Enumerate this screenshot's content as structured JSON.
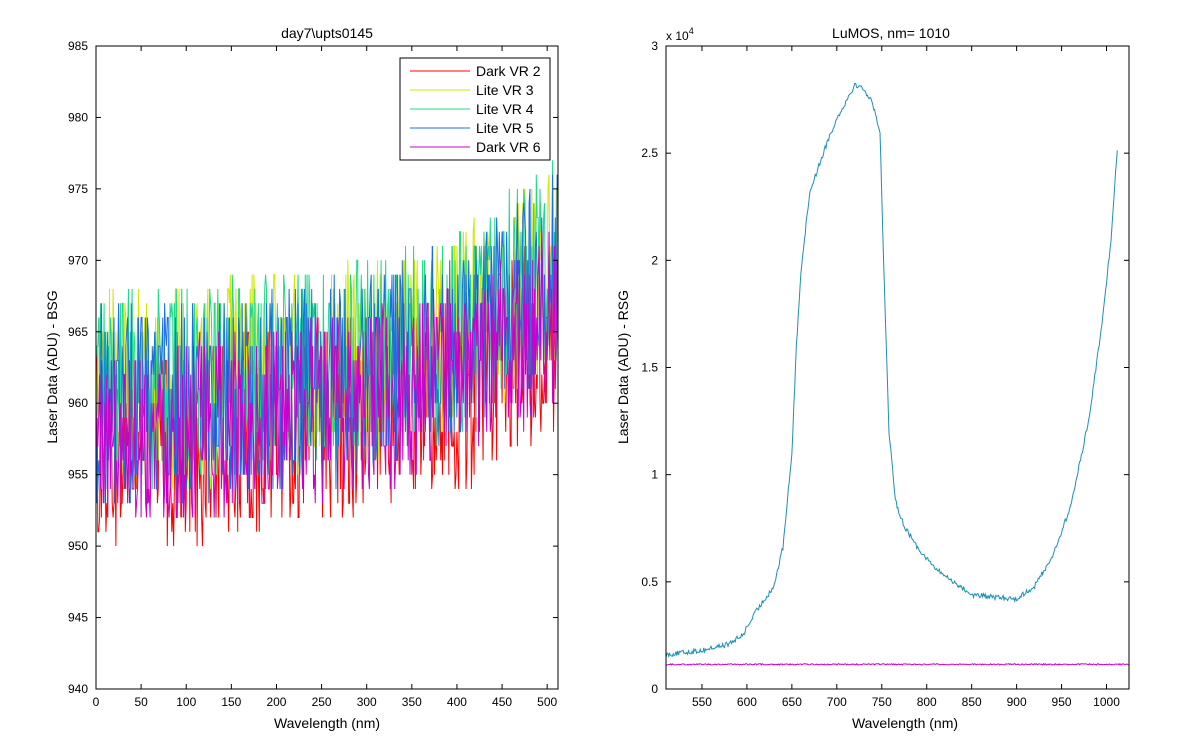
{
  "colors": {
    "dark2": "#ff0000",
    "lite3": "#d4e600",
    "lite4": "#1fd98a",
    "lite5": "#1a6fe0",
    "dark6": "#cc00cc",
    "right_curve": "#1f8fb0"
  },
  "chart_data": [
    {
      "type": "line",
      "title": "day7\\upts0145",
      "xlabel": "Wavelength (nm)",
      "ylabel": "Laser Data (ADU) - BSG",
      "xlim": [
        0,
        512
      ],
      "ylim": [
        940,
        985
      ],
      "xticks": [
        0,
        50,
        100,
        150,
        200,
        250,
        300,
        350,
        400,
        450,
        500
      ],
      "yticks": [
        940,
        945,
        950,
        955,
        960,
        965,
        970,
        975,
        980,
        985
      ],
      "grid": false,
      "legend": "top-right",
      "series": [
        {
          "name": "Dark VR 2",
          "color_key": "dark2",
          "trend": [
            [
              0,
              957
            ],
            [
              100,
              957
            ],
            [
              200,
              958
            ],
            [
              300,
              959
            ],
            [
              400,
              961
            ],
            [
              512,
              965
            ]
          ],
          "noise": 4.5
        },
        {
          "name": "Lite VR 3",
          "color_key": "lite3",
          "trend": [
            [
              0,
              961
            ],
            [
              100,
              961
            ],
            [
              200,
              962
            ],
            [
              300,
              963
            ],
            [
              400,
              965
            ],
            [
              512,
              970
            ]
          ],
          "noise": 4.5
        },
        {
          "name": "Lite VR 4",
          "color_key": "lite4",
          "trend": [
            [
              0,
              961
            ],
            [
              100,
              961
            ],
            [
              200,
              962
            ],
            [
              300,
              963
            ],
            [
              400,
              965
            ],
            [
              512,
              970
            ]
          ],
          "noise": 4.5
        },
        {
          "name": "Lite VR 5",
          "color_key": "lite5",
          "trend": [
            [
              0,
              960
            ],
            [
              100,
              960
            ],
            [
              200,
              961
            ],
            [
              300,
              962
            ],
            [
              400,
              964
            ],
            [
              512,
              969
            ]
          ],
          "noise": 4.5
        },
        {
          "name": "Dark VR 6",
          "color_key": "dark6",
          "trend": [
            [
              0,
              958
            ],
            [
              100,
              958
            ],
            [
              200,
              959
            ],
            [
              300,
              960
            ],
            [
              400,
              962
            ],
            [
              512,
              966
            ]
          ],
          "noise": 4.0
        }
      ]
    },
    {
      "type": "line",
      "title": "LuMOS, nm= 1010",
      "xlabel": "Wavelength (nm)",
      "ylabel": "Laser Data (ADU) - RSG",
      "exponent_label": "x 10",
      "exponent_power": "4",
      "xlim": [
        510,
        1025
      ],
      "ylim": [
        0,
        3
      ],
      "xticks": [
        550,
        600,
        650,
        700,
        750,
        800,
        850,
        900,
        950,
        1000
      ],
      "yticks": [
        0,
        0.5,
        1,
        1.5,
        2,
        2.5,
        3
      ],
      "grid": false,
      "series": [
        {
          "color_key": "right_curve",
          "x": [
            510,
            550,
            580,
            595,
            610,
            630,
            640,
            650,
            655,
            660,
            670,
            680,
            690,
            700,
            710,
            720,
            730,
            740,
            748,
            752,
            758,
            765,
            775,
            790,
            810,
            830,
            850,
            870,
            900,
            920,
            940,
            960,
            980,
            995,
            1005,
            1012
          ],
          "y": [
            0.16,
            0.18,
            0.21,
            0.25,
            0.36,
            0.48,
            0.66,
            1.1,
            1.6,
            1.95,
            2.32,
            2.44,
            2.56,
            2.66,
            2.74,
            2.82,
            2.8,
            2.73,
            2.6,
            2.0,
            1.2,
            0.88,
            0.76,
            0.66,
            0.56,
            0.5,
            0.44,
            0.43,
            0.42,
            0.48,
            0.62,
            0.85,
            1.25,
            1.7,
            2.1,
            2.52
          ],
          "noise": 0.012
        },
        {
          "color_key": "dark6",
          "x": [
            510,
            1025
          ],
          "y": [
            0.115,
            0.115
          ],
          "noise": 0.003
        }
      ]
    }
  ]
}
